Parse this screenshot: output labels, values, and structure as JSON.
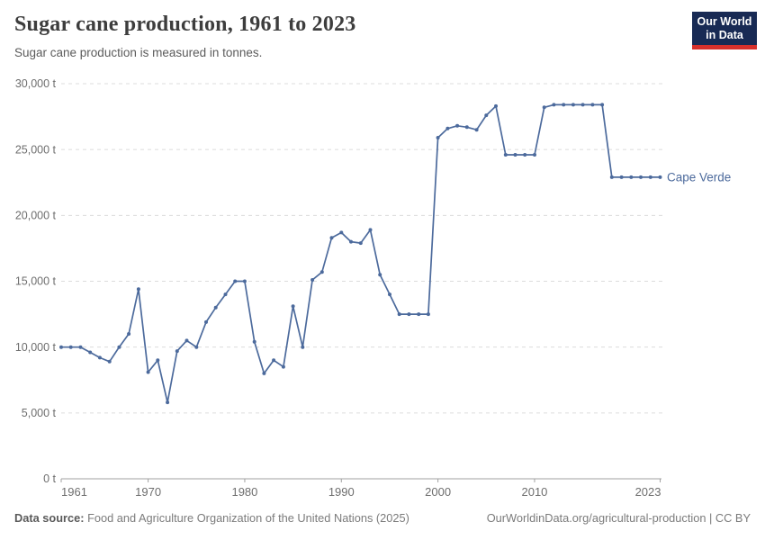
{
  "header": {
    "title": "Sugar cane production, 1961 to 2023",
    "subtitle": "Sugar cane production is measured in tonnes.",
    "logo": {
      "line1": "Our World",
      "line2": "in Data",
      "bg_color": "#182a54",
      "accent_color": "#d7302b"
    }
  },
  "chart_data": {
    "type": "line",
    "title": "Sugar cane production, 1961 to 2023",
    "unit": "t",
    "grid": true,
    "legend_position": "end-of-line",
    "xlim": [
      1961,
      2023
    ],
    "ylim": [
      0,
      30000
    ],
    "x_ticks": [
      1961,
      1970,
      1980,
      1990,
      2000,
      2010,
      2023
    ],
    "x_tick_labels": [
      "1961",
      "1970",
      "1980",
      "1990",
      "2000",
      "2010",
      "2023"
    ],
    "y_ticks": [
      0,
      5000,
      10000,
      15000,
      20000,
      25000,
      30000
    ],
    "y_tick_labels": [
      "0 t",
      "5,000 t",
      "10,000 t",
      "15,000 t",
      "20,000 t",
      "25,000 t",
      "30,000 t"
    ],
    "series": [
      {
        "name": "Cape Verde",
        "color": "#4C6A9C",
        "x": [
          1961,
          1962,
          1963,
          1964,
          1965,
          1966,
          1967,
          1968,
          1969,
          1970,
          1971,
          1972,
          1973,
          1974,
          1975,
          1976,
          1977,
          1978,
          1979,
          1980,
          1981,
          1982,
          1983,
          1984,
          1985,
          1986,
          1987,
          1988,
          1989,
          1990,
          1991,
          1992,
          1993,
          1994,
          1995,
          1996,
          1997,
          1998,
          1999,
          2000,
          2001,
          2002,
          2003,
          2004,
          2005,
          2006,
          2007,
          2008,
          2009,
          2010,
          2011,
          2012,
          2013,
          2014,
          2015,
          2016,
          2017,
          2018,
          2019,
          2020,
          2021,
          2022,
          2023
        ],
        "values": [
          10000,
          10000,
          10000,
          9600,
          9200,
          8900,
          10000,
          11000,
          14400,
          8100,
          9000,
          5800,
          9700,
          10500,
          10000,
          11900,
          13000,
          14000,
          15000,
          15000,
          10400,
          8000,
          9000,
          8500,
          13100,
          10000,
          15100,
          15700,
          18300,
          18700,
          18000,
          17900,
          18900,
          15500,
          14000,
          12500,
          12500,
          12500,
          12500,
          25900,
          26600,
          26800,
          26700,
          26500,
          27600,
          28300,
          24600,
          24600,
          24600,
          24600,
          28200,
          28400,
          28400,
          28400,
          28400,
          28400,
          28400,
          22900,
          22900,
          22900,
          22900,
          22900,
          22900
        ]
      }
    ],
    "axis_color": "#a0a0a0",
    "grid_color": "#dcdcdc",
    "tick_label_color": "#6e6e6e"
  },
  "footer": {
    "source_label": "Data source:",
    "source_text": " Food and Agriculture Organization of the United Nations (2025)",
    "link_text": "OurWorldinData.org/agricultural-production | CC BY"
  }
}
